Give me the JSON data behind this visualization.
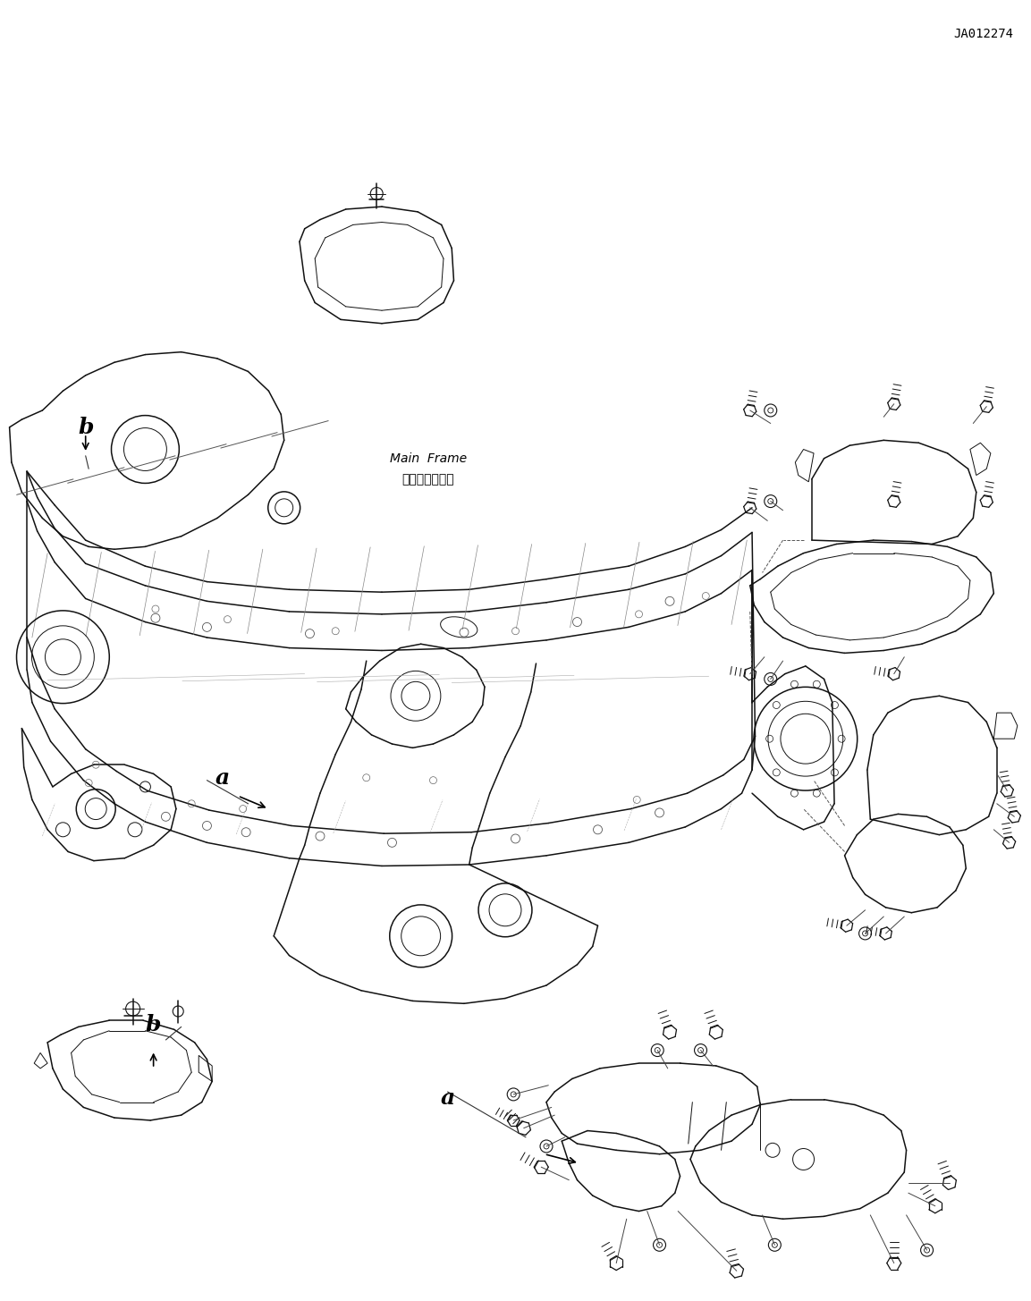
{
  "bg_color": "#ffffff",
  "image_ref_code": "JA012274",
  "fig_width": 11.53,
  "fig_height": 14.55,
  "dpi": 100,
  "labels": {
    "a_upper": {
      "text": "a",
      "nx": 0.434,
      "ny": 0.845
    },
    "a_main": {
      "text": "a",
      "nx": 0.215,
      "ny": 0.598
    },
    "b_upper": {
      "text": "b",
      "nx": 0.148,
      "ny": 0.788
    },
    "b_lower": {
      "text": "b",
      "nx": 0.082,
      "ny": 0.328
    },
    "main_frame_jp": {
      "text": "メインフレーム",
      "nx": 0.415,
      "ny": 0.368
    },
    "main_frame_en": {
      "text": "Main  Frame",
      "nx": 0.415,
      "ny": 0.352
    }
  }
}
